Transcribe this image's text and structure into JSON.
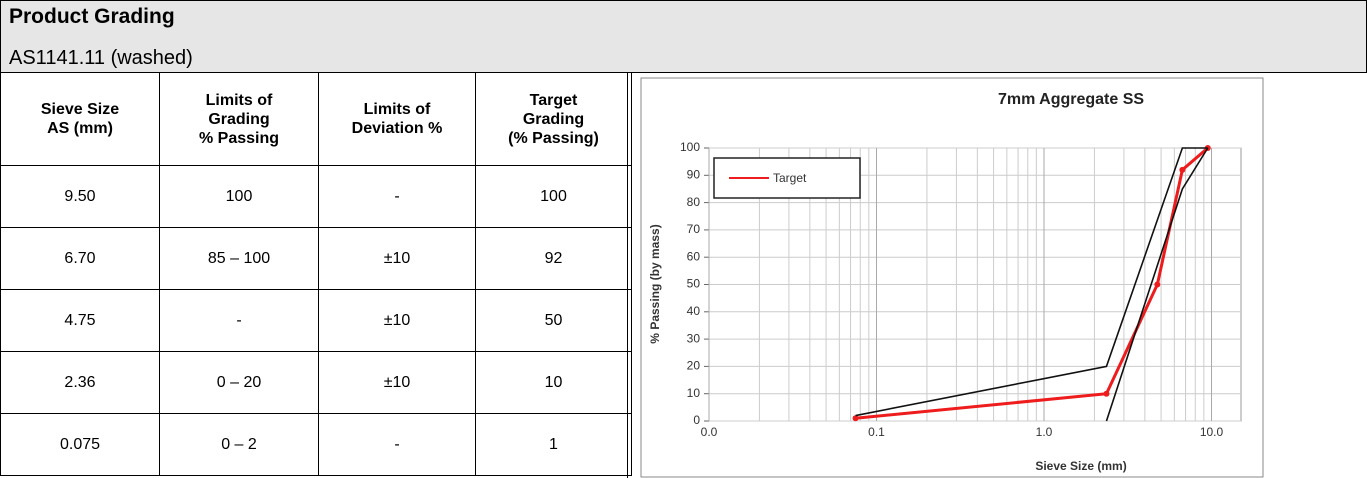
{
  "header": {
    "title": "Product Grading",
    "subtitle": "AS1141.11 (washed)"
  },
  "table": {
    "headers": [
      [
        "Sieve Size",
        "AS (mm)"
      ],
      [
        "Limits of",
        "Grading",
        "% Passing"
      ],
      [
        "Limits of",
        "Deviation %"
      ],
      [
        "Target",
        "Grading",
        "(% Passing)"
      ]
    ],
    "rows": [
      [
        "9.50",
        "100",
        "-",
        "100"
      ],
      [
        "6.70",
        "85 – 100",
        "±10",
        "92"
      ],
      [
        "4.75",
        "-",
        "±10",
        "50"
      ],
      [
        "2.36",
        "0 – 20",
        "±10",
        "10"
      ],
      [
        "0.075",
        "0 – 2",
        "-",
        "1"
      ]
    ]
  },
  "chart_data": {
    "type": "line",
    "title": "7mm Aggregate SS",
    "xlabel": "Sieve Size (mm)",
    "ylabel": "% Passing (by mass)",
    "xscale": "log",
    "minor_grid": true,
    "grid": true,
    "legend": "upper left",
    "xlim": [
      0.01,
      15
    ],
    "xticks": [
      {
        "value": 0.01,
        "label": "0.0"
      },
      {
        "value": 0.1,
        "label": "0.1"
      },
      {
        "value": 1,
        "label": "1.0"
      },
      {
        "value": 10,
        "label": "10.0"
      }
    ],
    "ylim": [
      0,
      100
    ],
    "yticks": [
      0,
      10,
      20,
      30,
      40,
      50,
      60,
      70,
      80,
      90,
      100
    ],
    "series": [
      {
        "name": "Target",
        "color": "#ee1c1c",
        "markers": true,
        "x": [
          0.075,
          2.36,
          4.75,
          6.7,
          9.5
        ],
        "values": [
          1,
          10,
          50,
          92,
          100
        ]
      },
      {
        "color": "#111111",
        "x": [
          0.075,
          2.36,
          6.7,
          9.5
        ],
        "values": [
          2,
          20,
          100,
          100
        ]
      },
      {
        "color": "#111111",
        "x": [
          2.36,
          6.7,
          9.5
        ],
        "values": [
          0,
          85,
          100
        ]
      }
    ]
  }
}
